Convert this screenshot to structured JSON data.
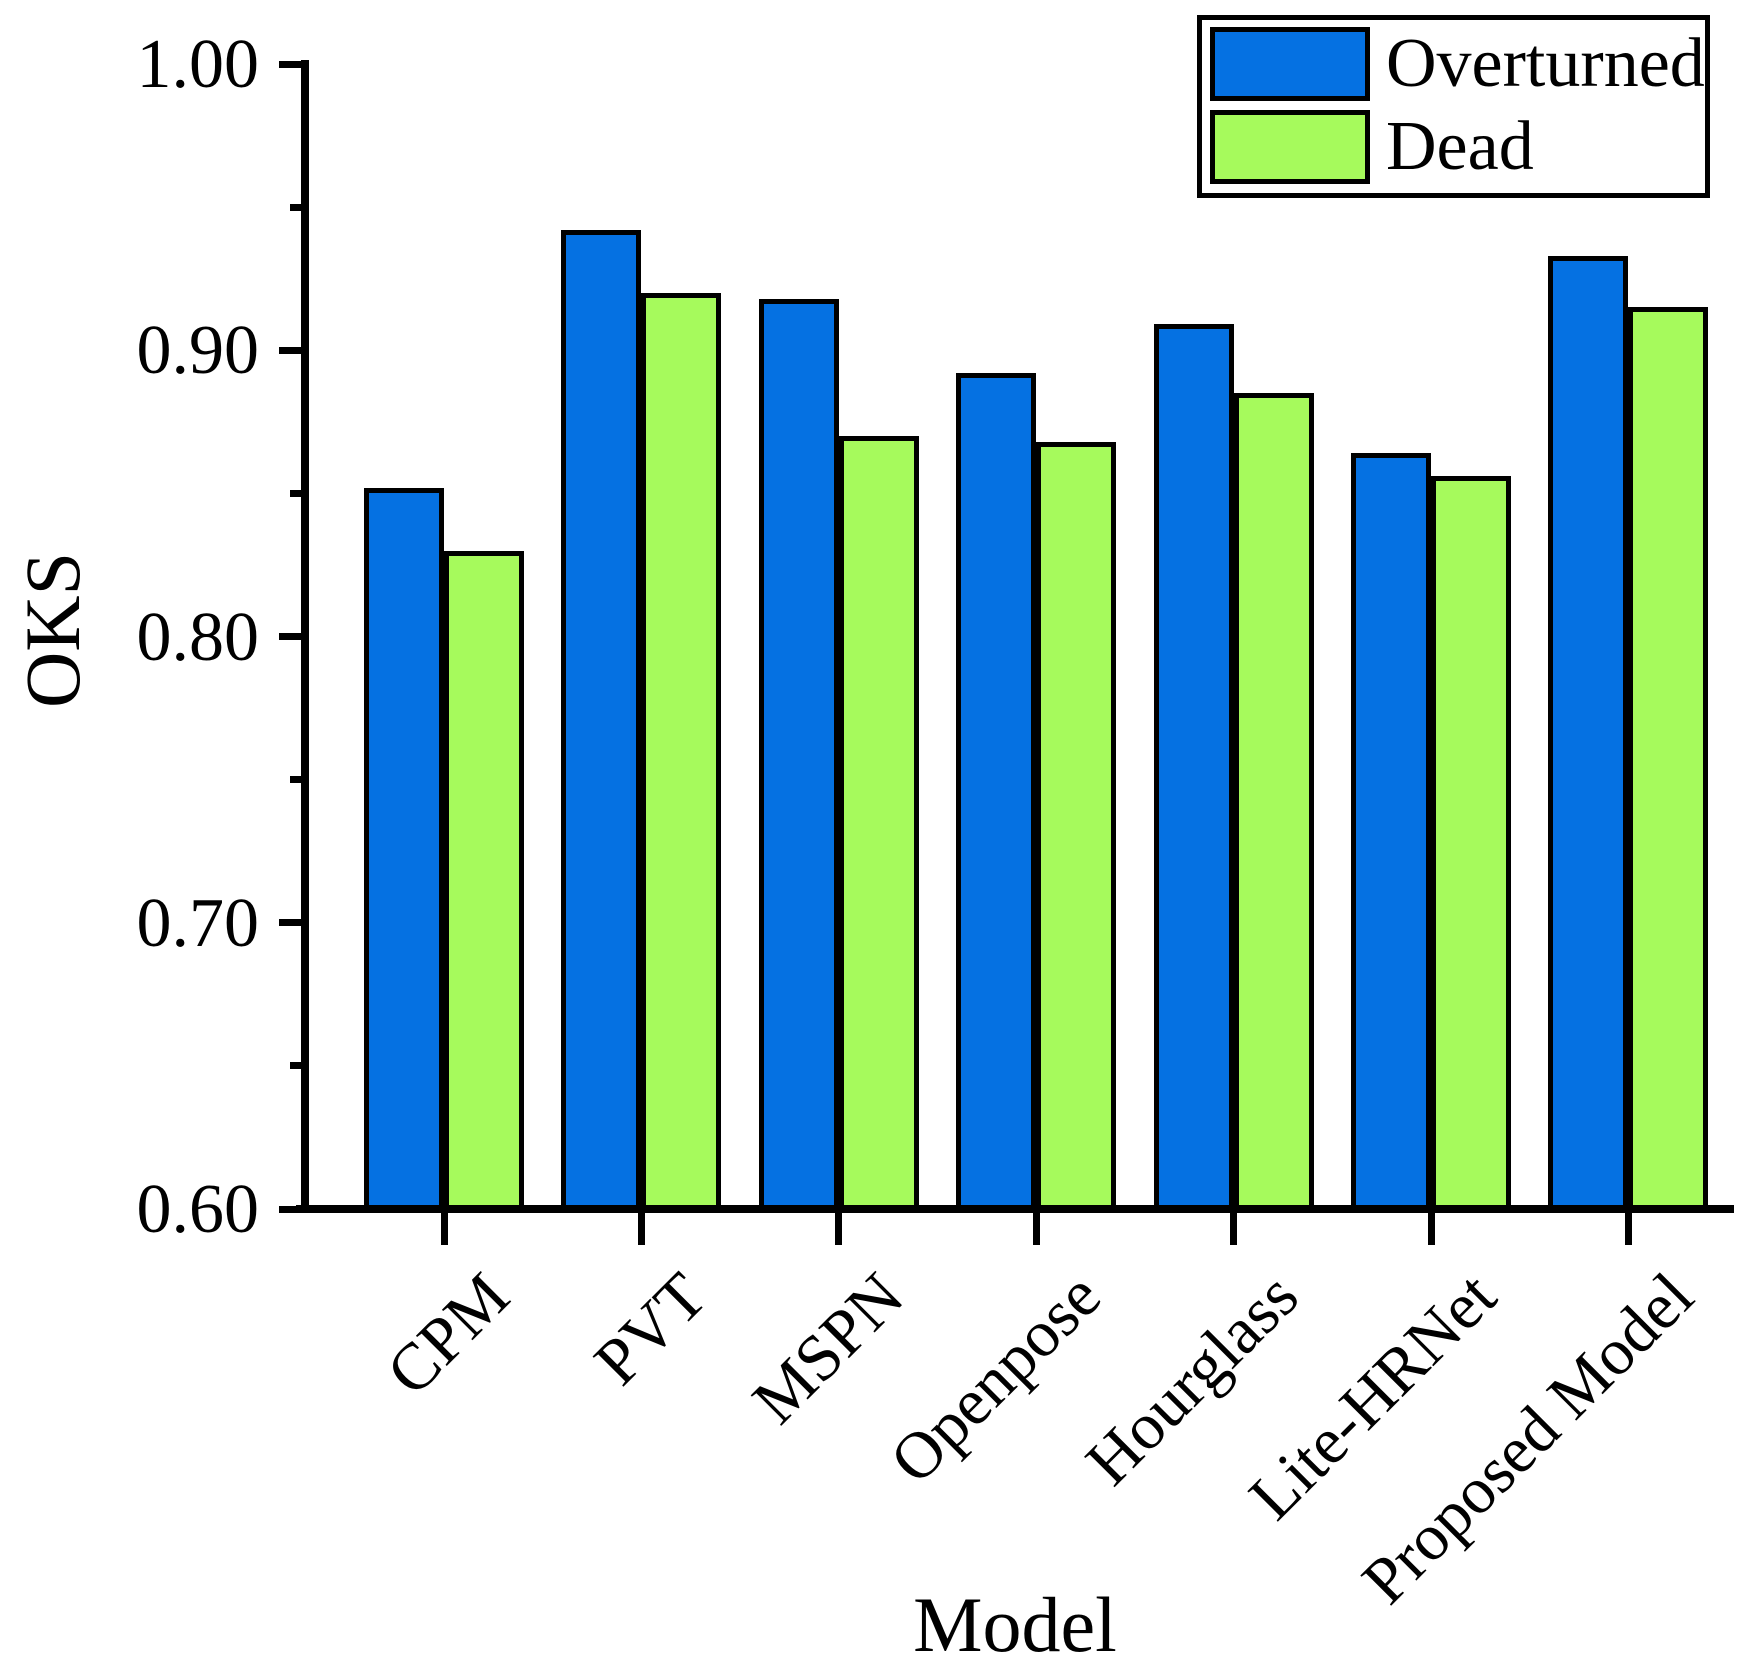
{
  "figure": {
    "background": "#ffffff"
  },
  "chart_data": {
    "type": "bar",
    "title": "",
    "xlabel": "Model",
    "ylabel": "OKS",
    "categories": [
      "CPM",
      "PVT",
      "MSPN",
      "Openpose",
      "Hourglass",
      "Lite-HRNet",
      "Proposed Model"
    ],
    "series": [
      {
        "name": "Overturned",
        "color": "#0571E2",
        "values": [
          0.852,
          0.942,
          0.918,
          0.892,
          0.909,
          0.864,
          0.933
        ]
      },
      {
        "name": "Dead",
        "color": "#A6FA5C",
        "values": [
          0.83,
          0.92,
          0.87,
          0.868,
          0.885,
          0.856,
          0.915
        ]
      }
    ],
    "ylim": [
      0.6,
      1.0
    ],
    "y_major_ticks": [
      1.0,
      0.9,
      0.8,
      0.7,
      0.6
    ],
    "y_major_tick_labels": [
      "1.00",
      "0.90",
      "0.80",
      "0.70",
      "0.60"
    ],
    "y_minor_ticks": [
      0.95,
      0.85,
      0.75,
      0.65
    ],
    "grid": "off",
    "legend_position": "top-right",
    "bar_edge_color": "#000000",
    "axis_color": "#000000"
  }
}
